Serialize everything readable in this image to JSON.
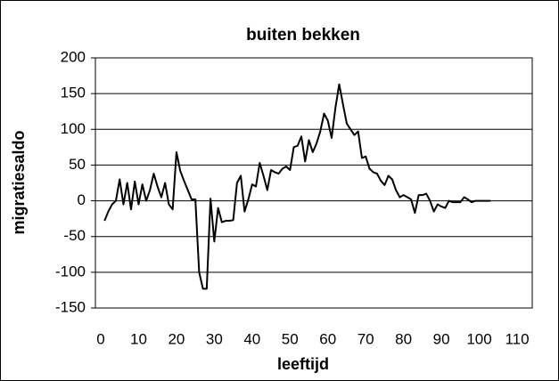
{
  "chart_data": {
    "type": "line",
    "title": "buiten bekken",
    "x_label": "leeftijd",
    "y_label": "migratiesaldo",
    "x": [
      1,
      2,
      3,
      4,
      5,
      6,
      7,
      8,
      9,
      10,
      11,
      12,
      13,
      14,
      15,
      16,
      17,
      18,
      19,
      20,
      21,
      22,
      23,
      24,
      25,
      26,
      27,
      28,
      29,
      30,
      31,
      32,
      33,
      34,
      35,
      36,
      37,
      38,
      39,
      40,
      41,
      42,
      43,
      44,
      45,
      46,
      47,
      48,
      49,
      50,
      51,
      52,
      53,
      54,
      55,
      56,
      57,
      58,
      59,
      60,
      61,
      62,
      63,
      64,
      65,
      66,
      67,
      68,
      69,
      70,
      71,
      72,
      73,
      74,
      75,
      76,
      77,
      78,
      79,
      80,
      81,
      82,
      83,
      84,
      85,
      86,
      87,
      88,
      89,
      90,
      91,
      92,
      93,
      94,
      95,
      96,
      97,
      98,
      99,
      100,
      101,
      102,
      103
    ],
    "series": [
      {
        "name": "migratiesaldo",
        "color": "#000000",
        "values": [
          -28,
          -15,
          -5,
          0,
          30,
          -5,
          25,
          -12,
          27,
          -5,
          23,
          0,
          15,
          38,
          20,
          5,
          25,
          -5,
          -12,
          68,
          42,
          28,
          15,
          2,
          2,
          -100,
          -123,
          -123,
          3,
          -57,
          -10,
          -30,
          -28,
          -28,
          -27,
          25,
          35,
          -15,
          2,
          23,
          20,
          53,
          35,
          15,
          43,
          40,
          38,
          45,
          48,
          43,
          75,
          77,
          90,
          55,
          85,
          68,
          80,
          97,
          122,
          112,
          88,
          130,
          163,
          135,
          108,
          100,
          92,
          97,
          60,
          62,
          45,
          40,
          38,
          28,
          22,
          35,
          30,
          15,
          5,
          8,
          5,
          2,
          -17,
          8,
          8,
          10,
          0,
          -15,
          -5,
          -8,
          -10,
          0,
          -2,
          -2,
          -2,
          5,
          2,
          -2,
          0,
          0,
          0,
          0,
          0
        ]
      }
    ],
    "xlim": [
      0,
      110
    ],
    "xticks": [
      0,
      10,
      20,
      30,
      40,
      50,
      60,
      70,
      80,
      90,
      100,
      110
    ],
    "ylim": [
      -150,
      200
    ],
    "yticks": [
      -150,
      -100,
      -50,
      0,
      50,
      100,
      150,
      200
    ],
    "grid": true
  }
}
